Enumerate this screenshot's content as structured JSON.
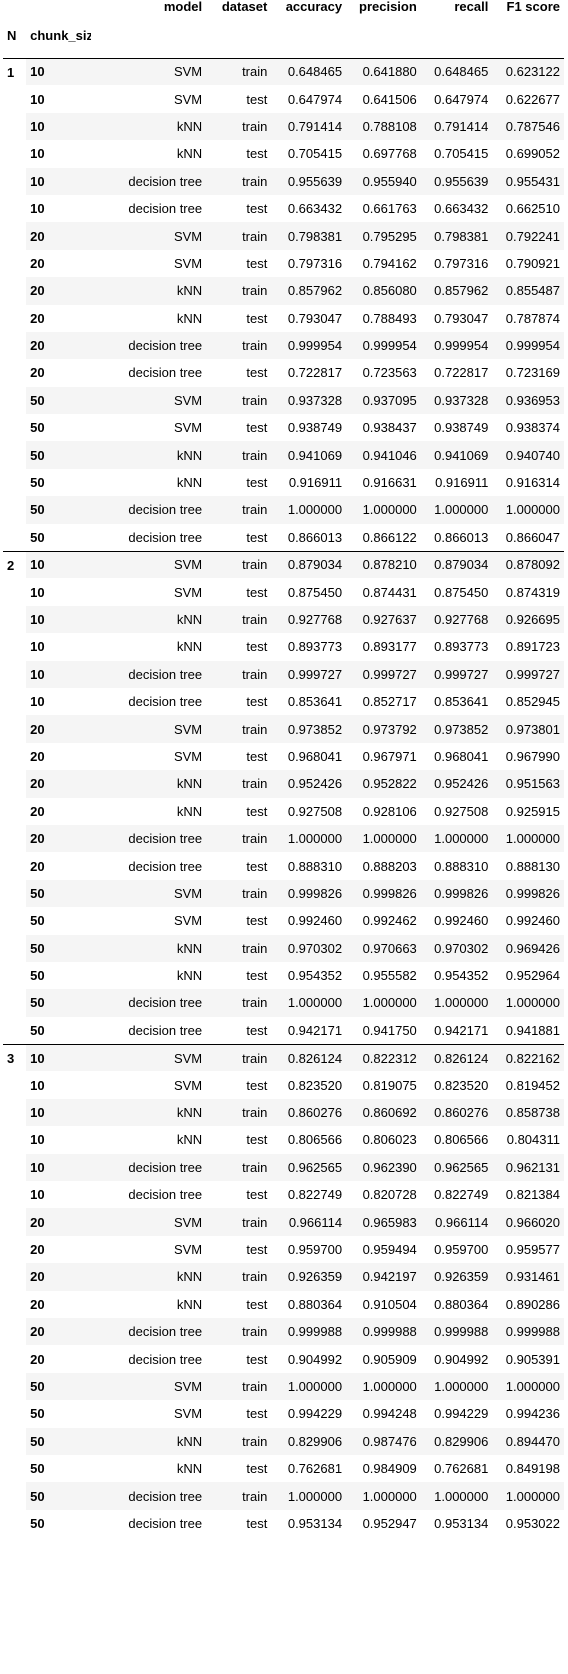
{
  "columns": {
    "index_n": "N",
    "index_chunk": "chunk_size",
    "model": "model",
    "dataset": "dataset",
    "accuracy": "accuracy",
    "precision": "precision",
    "recall": "recall",
    "f1": "F1 score"
  },
  "groups": [
    {
      "N": "1",
      "rows": [
        [
          "10",
          "SVM",
          "train",
          "0.648465",
          "0.641880",
          "0.648465",
          "0.623122"
        ],
        [
          "10",
          "SVM",
          "test",
          "0.647974",
          "0.641506",
          "0.647974",
          "0.622677"
        ],
        [
          "10",
          "kNN",
          "train",
          "0.791414",
          "0.788108",
          "0.791414",
          "0.787546"
        ],
        [
          "10",
          "kNN",
          "test",
          "0.705415",
          "0.697768",
          "0.705415",
          "0.699052"
        ],
        [
          "10",
          "decision tree",
          "train",
          "0.955639",
          "0.955940",
          "0.955639",
          "0.955431"
        ],
        [
          "10",
          "decision tree",
          "test",
          "0.663432",
          "0.661763",
          "0.663432",
          "0.662510"
        ],
        [
          "20",
          "SVM",
          "train",
          "0.798381",
          "0.795295",
          "0.798381",
          "0.792241"
        ],
        [
          "20",
          "SVM",
          "test",
          "0.797316",
          "0.794162",
          "0.797316",
          "0.790921"
        ],
        [
          "20",
          "kNN",
          "train",
          "0.857962",
          "0.856080",
          "0.857962",
          "0.855487"
        ],
        [
          "20",
          "kNN",
          "test",
          "0.793047",
          "0.788493",
          "0.793047",
          "0.787874"
        ],
        [
          "20",
          "decision tree",
          "train",
          "0.999954",
          "0.999954",
          "0.999954",
          "0.999954"
        ],
        [
          "20",
          "decision tree",
          "test",
          "0.722817",
          "0.723563",
          "0.722817",
          "0.723169"
        ],
        [
          "50",
          "SVM",
          "train",
          "0.937328",
          "0.937095",
          "0.937328",
          "0.936953"
        ],
        [
          "50",
          "SVM",
          "test",
          "0.938749",
          "0.938437",
          "0.938749",
          "0.938374"
        ],
        [
          "50",
          "kNN",
          "train",
          "0.941069",
          "0.941046",
          "0.941069",
          "0.940740"
        ],
        [
          "50",
          "kNN",
          "test",
          "0.916911",
          "0.916631",
          "0.916911",
          "0.916314"
        ],
        [
          "50",
          "decision tree",
          "train",
          "1.000000",
          "1.000000",
          "1.000000",
          "1.000000"
        ],
        [
          "50",
          "decision tree",
          "test",
          "0.866013",
          "0.866122",
          "0.866013",
          "0.866047"
        ]
      ]
    },
    {
      "N": "2",
      "rows": [
        [
          "10",
          "SVM",
          "train",
          "0.879034",
          "0.878210",
          "0.879034",
          "0.878092"
        ],
        [
          "10",
          "SVM",
          "test",
          "0.875450",
          "0.874431",
          "0.875450",
          "0.874319"
        ],
        [
          "10",
          "kNN",
          "train",
          "0.927768",
          "0.927637",
          "0.927768",
          "0.926695"
        ],
        [
          "10",
          "kNN",
          "test",
          "0.893773",
          "0.893177",
          "0.893773",
          "0.891723"
        ],
        [
          "10",
          "decision tree",
          "train",
          "0.999727",
          "0.999727",
          "0.999727",
          "0.999727"
        ],
        [
          "10",
          "decision tree",
          "test",
          "0.853641",
          "0.852717",
          "0.853641",
          "0.852945"
        ],
        [
          "20",
          "SVM",
          "train",
          "0.973852",
          "0.973792",
          "0.973852",
          "0.973801"
        ],
        [
          "20",
          "SVM",
          "test",
          "0.968041",
          "0.967971",
          "0.968041",
          "0.967990"
        ],
        [
          "20",
          "kNN",
          "train",
          "0.952426",
          "0.952822",
          "0.952426",
          "0.951563"
        ],
        [
          "20",
          "kNN",
          "test",
          "0.927508",
          "0.928106",
          "0.927508",
          "0.925915"
        ],
        [
          "20",
          "decision tree",
          "train",
          "1.000000",
          "1.000000",
          "1.000000",
          "1.000000"
        ],
        [
          "20",
          "decision tree",
          "test",
          "0.888310",
          "0.888203",
          "0.888310",
          "0.888130"
        ],
        [
          "50",
          "SVM",
          "train",
          "0.999826",
          "0.999826",
          "0.999826",
          "0.999826"
        ],
        [
          "50",
          "SVM",
          "test",
          "0.992460",
          "0.992462",
          "0.992460",
          "0.992460"
        ],
        [
          "50",
          "kNN",
          "train",
          "0.970302",
          "0.970663",
          "0.970302",
          "0.969426"
        ],
        [
          "50",
          "kNN",
          "test",
          "0.954352",
          "0.955582",
          "0.954352",
          "0.952964"
        ],
        [
          "50",
          "decision tree",
          "train",
          "1.000000",
          "1.000000",
          "1.000000",
          "1.000000"
        ],
        [
          "50",
          "decision tree",
          "test",
          "0.942171",
          "0.941750",
          "0.942171",
          "0.941881"
        ]
      ]
    },
    {
      "N": "3",
      "rows": [
        [
          "10",
          "SVM",
          "train",
          "0.826124",
          "0.822312",
          "0.826124",
          "0.822162"
        ],
        [
          "10",
          "SVM",
          "test",
          "0.823520",
          "0.819075",
          "0.823520",
          "0.819452"
        ],
        [
          "10",
          "kNN",
          "train",
          "0.860276",
          "0.860692",
          "0.860276",
          "0.858738"
        ],
        [
          "10",
          "kNN",
          "test",
          "0.806566",
          "0.806023",
          "0.806566",
          "0.804311"
        ],
        [
          "10",
          "decision tree",
          "train",
          "0.962565",
          "0.962390",
          "0.962565",
          "0.962131"
        ],
        [
          "10",
          "decision tree",
          "test",
          "0.822749",
          "0.820728",
          "0.822749",
          "0.821384"
        ],
        [
          "20",
          "SVM",
          "train",
          "0.966114",
          "0.965983",
          "0.966114",
          "0.966020"
        ],
        [
          "20",
          "SVM",
          "test",
          "0.959700",
          "0.959494",
          "0.959700",
          "0.959577"
        ],
        [
          "20",
          "kNN",
          "train",
          "0.926359",
          "0.942197",
          "0.926359",
          "0.931461"
        ],
        [
          "20",
          "kNN",
          "test",
          "0.880364",
          "0.910504",
          "0.880364",
          "0.890286"
        ],
        [
          "20",
          "decision tree",
          "train",
          "0.999988",
          "0.999988",
          "0.999988",
          "0.999988"
        ],
        [
          "20",
          "decision tree",
          "test",
          "0.904992",
          "0.905909",
          "0.904992",
          "0.905391"
        ],
        [
          "50",
          "SVM",
          "train",
          "1.000000",
          "1.000000",
          "1.000000",
          "1.000000"
        ],
        [
          "50",
          "SVM",
          "test",
          "0.994229",
          "0.994248",
          "0.994229",
          "0.994236"
        ],
        [
          "50",
          "kNN",
          "train",
          "0.829906",
          "0.987476",
          "0.829906",
          "0.894470"
        ],
        [
          "50",
          "kNN",
          "test",
          "0.762681",
          "0.984909",
          "0.762681",
          "0.849198"
        ],
        [
          "50",
          "decision tree",
          "train",
          "1.000000",
          "1.000000",
          "1.000000",
          "1.000000"
        ],
        [
          "50",
          "decision tree",
          "test",
          "0.953134",
          "0.952947",
          "0.953134",
          "0.953022"
        ]
      ]
    }
  ]
}
